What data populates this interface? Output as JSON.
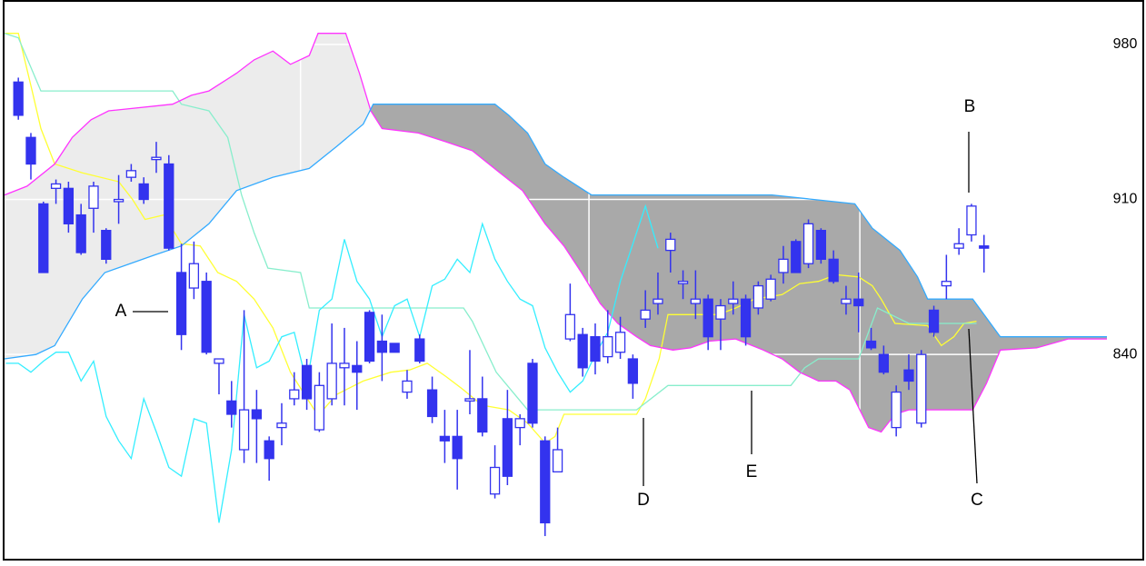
{
  "chart_data": {
    "type": "candlestick",
    "xlim": [
      -1.1,
      86.8
    ],
    "xticks": [
      22.5,
      45.5,
      67.1
    ],
    "ylim": [
      749,
      998
    ],
    "yticks": [
      840,
      910,
      980
    ],
    "grid": true,
    "up_color": "#ffffff",
    "down_color": "#3333ee",
    "wick_color": "#3333ee",
    "cloud_colors": {
      "a_above": "#ececec",
      "b_above": "#a9a9a9"
    },
    "x": [
      0,
      1,
      2,
      3,
      4,
      5,
      6,
      7,
      8,
      9,
      10,
      11,
      12,
      13,
      14,
      15,
      16,
      17,
      18,
      19,
      20,
      21,
      22,
      23,
      24,
      25,
      26,
      27,
      28,
      29,
      30,
      31,
      32,
      33,
      34,
      35,
      36,
      37,
      38,
      39,
      40,
      41,
      42,
      43,
      44,
      45,
      46,
      47,
      48,
      49,
      50,
      51,
      52,
      53,
      54,
      55,
      56,
      57,
      58,
      59,
      60,
      61,
      62,
      63,
      64,
      65,
      66,
      67,
      68,
      69,
      70,
      71,
      72,
      73,
      74,
      75,
      76,
      77
    ],
    "open": [
      963,
      938,
      908,
      915,
      915,
      903,
      906,
      896,
      909,
      920,
      917,
      928,
      926,
      877,
      870,
      873,
      836,
      819,
      797,
      815,
      801,
      807,
      820,
      835,
      806,
      820,
      834,
      835,
      859,
      846,
      845,
      823,
      847,
      824,
      803,
      803,
      819,
      820,
      777,
      811,
      807,
      836,
      801,
      787,
      847,
      849,
      848,
      839,
      841,
      838,
      856,
      863,
      887,
      872,
      863,
      865,
      856,
      863,
      865,
      861,
      865,
      877,
      891,
      881,
      896,
      883,
      863,
      865,
      846,
      840,
      807,
      833,
      809,
      860,
      871,
      888,
      894,
      889
    ],
    "high": [
      965,
      940,
      909,
      919,
      918,
      908,
      918,
      897,
      921,
      926,
      920,
      936,
      930,
      890,
      891,
      877,
      838,
      828,
      860,
      824,
      803,
      818,
      832,
      838,
      832,
      854,
      852,
      846,
      860,
      858,
      845,
      833,
      849,
      830,
      815,
      815,
      842,
      830,
      799,
      824,
      813,
      838,
      803,
      807,
      872,
      852,
      854,
      860,
      857,
      840,
      869,
      877,
      895,
      878,
      878,
      867,
      865,
      873,
      867,
      873,
      876,
      889,
      892,
      901,
      897,
      887,
      871,
      877,
      852,
      844,
      826,
      840,
      842,
      862,
      885,
      897,
      908,
      894
    ],
    "low": [
      946,
      919,
      877,
      908,
      895,
      885,
      895,
      881,
      899,
      918,
      908,
      922,
      887,
      842,
      865,
      840,
      822,
      807,
      791,
      791,
      783,
      799,
      817,
      815,
      805,
      817,
      817,
      815,
      836,
      828,
      841,
      820,
      836,
      809,
      791,
      779,
      813,
      803,
      775,
      781,
      799,
      807,
      758,
      787,
      846,
      830,
      831,
      836,
      838,
      820,
      852,
      858,
      877,
      865,
      856,
      842,
      842,
      858,
      844,
      858,
      864,
      872,
      877,
      879,
      881,
      872,
      858,
      850,
      842,
      831,
      803,
      824,
      807,
      848,
      865,
      885,
      891,
      877
    ],
    "close": [
      948,
      926,
      877,
      917,
      899,
      886,
      916,
      883,
      910,
      923,
      910,
      929,
      888,
      849,
      881,
      841,
      838,
      813,
      815,
      811,
      793,
      809,
      824,
      820,
      826,
      836,
      836,
      832,
      837,
      841,
      841,
      828,
      837,
      812,
      801,
      793,
      820,
      805,
      789,
      785,
      811,
      809,
      764,
      797,
      858,
      834,
      837,
      848,
      850,
      827,
      860,
      865,
      892,
      873,
      865,
      848,
      862,
      865,
      848,
      871,
      874,
      883,
      877,
      899,
      883,
      873,
      865,
      862,
      843,
      832,
      823,
      828,
      840,
      850,
      873,
      890,
      907,
      888
    ],
    "lines": [
      {
        "color": "#ffff33",
        "x": [
          -1.1,
          0,
          1.1,
          1.8,
          2.9,
          5.1,
          8,
          9.1,
          10.1,
          11.6,
          13,
          14.5,
          15.9,
          17.4,
          18.8,
          20.3,
          21.7,
          23.6,
          24.3,
          25.4,
          27.5,
          29.7,
          31.2,
          32.6,
          34.1,
          35.5,
          37,
          39.1,
          40.6,
          42,
          42.8,
          43.5,
          49.3,
          50,
          51.1,
          51.8,
          55.8,
          57.2,
          58.7,
          60.9,
          62.3,
          63.8,
          65.2,
          67,
          68.1,
          68.8,
          69.9,
          72.5,
          73.6,
          74.6,
          75.4,
          76.4
        ],
        "values": [
          985,
          985,
          959,
          942,
          926,
          922,
          918,
          910,
          901,
          903,
          890,
          889,
          877,
          873,
          865,
          852,
          832,
          815,
          815,
          822,
          828,
          832,
          833,
          836,
          830,
          824,
          817,
          815,
          809,
          800,
          803,
          813,
          813,
          820,
          838,
          858,
          858,
          861,
          865,
          867,
          872,
          873,
          876,
          875,
          871,
          865,
          854,
          853,
          844,
          848,
          854,
          855
        ]
      },
      {
        "color": "#88eecc",
        "x": [
          -1.1,
          0,
          1.8,
          12.3,
          13,
          15.2,
          16.7,
          17.8,
          18.8,
          19.9,
          22.5,
          23.2,
          35.5,
          36.2,
          38.1,
          40.6,
          49.3,
          51.8,
          61.6,
          62.7,
          63.8,
          67,
          68.5,
          71,
          76.4
        ],
        "values": [
          985,
          983,
          959,
          959,
          953,
          950,
          938,
          912,
          895,
          879,
          877,
          861,
          861,
          855,
          832,
          815,
          815,
          826,
          826,
          834,
          838,
          838,
          861,
          854,
          854
        ]
      },
      {
        "color": "#ff33ff",
        "x": [
          -1.1,
          0.7,
          2.9,
          4.3,
          5.8,
          7.2,
          12.3,
          13.8,
          15.2,
          17.4,
          18.8,
          20.3,
          21.7,
          23.2,
          23.9,
          26.1,
          27.2,
          28.1,
          29,
          31.9,
          34.1,
          36.2,
          38.4,
          40.2,
          42,
          43.5,
          44.9,
          46.4,
          47.8,
          49.3,
          50.4,
          52.2,
          53.6,
          55.1,
          57.2,
          59.4,
          60.9,
          62.3,
          63.8,
          65.2,
          66.3,
          67.8,
          68.8,
          69.9,
          71,
          76.1,
          77.2,
          78.3,
          81.2,
          83.7,
          86.8
        ],
        "values": [
          912,
          916,
          926,
          938,
          946,
          950,
          953,
          957,
          959,
          967,
          973,
          977,
          971,
          975,
          985,
          985,
          967,
          950,
          942,
          940,
          936,
          932,
          922,
          914,
          899,
          889,
          877,
          863,
          854,
          848,
          844,
          842,
          843,
          846,
          847,
          842,
          838,
          832,
          828,
          828,
          824,
          807,
          805,
          813,
          815,
          815,
          827,
          842,
          843,
          847,
          847
        ]
      },
      {
        "color": "#33aaff",
        "x": [
          -1.1,
          1.4,
          2.9,
          5.1,
          6.9,
          10.9,
          13,
          15.2,
          17.4,
          20.3,
          23.2,
          25.4,
          27.5,
          28.3,
          38,
          39.1,
          40.6,
          42,
          43.5,
          45.7,
          60.1,
          66.7,
          68.1,
          70.3,
          71.7,
          72.5,
          76.1,
          78.3,
          86.8
        ],
        "values": [
          838,
          840,
          844,
          865,
          877,
          885,
          889,
          899,
          914,
          920,
          924,
          934,
          944,
          953,
          953,
          948,
          940,
          926,
          920,
          912,
          912,
          908,
          897,
          887,
          875,
          865,
          865,
          848,
          848
        ]
      },
      {
        "color": "#33eeff",
        "x": [
          -1,
          0,
          1,
          2,
          3,
          4,
          5,
          6,
          7,
          8,
          9,
          10,
          11,
          12,
          13,
          14,
          15,
          16,
          17,
          18,
          19,
          20,
          21,
          22,
          23,
          24,
          25,
          26,
          27,
          28,
          29,
          30,
          31,
          32,
          33,
          34,
          35,
          36,
          37,
          38,
          39,
          40,
          41,
          42,
          43,
          44,
          45,
          46,
          47,
          48,
          49,
          50,
          51
        ],
        "values": [
          836,
          836,
          832,
          837,
          841,
          841,
          828,
          837,
          812,
          801,
          793,
          820,
          805,
          789,
          785,
          811,
          809,
          764,
          797,
          858,
          834,
          837,
          848,
          850,
          827,
          860,
          865,
          892,
          873,
          865,
          848,
          862,
          865,
          848,
          871,
          874,
          883,
          877,
          899,
          883,
          873,
          865,
          862,
          843,
          832,
          823,
          828,
          840,
          850,
          873,
          890,
          907,
          888
        ]
      }
    ],
    "annotations": [
      "A",
      "B",
      "C",
      "D",
      "E"
    ]
  }
}
